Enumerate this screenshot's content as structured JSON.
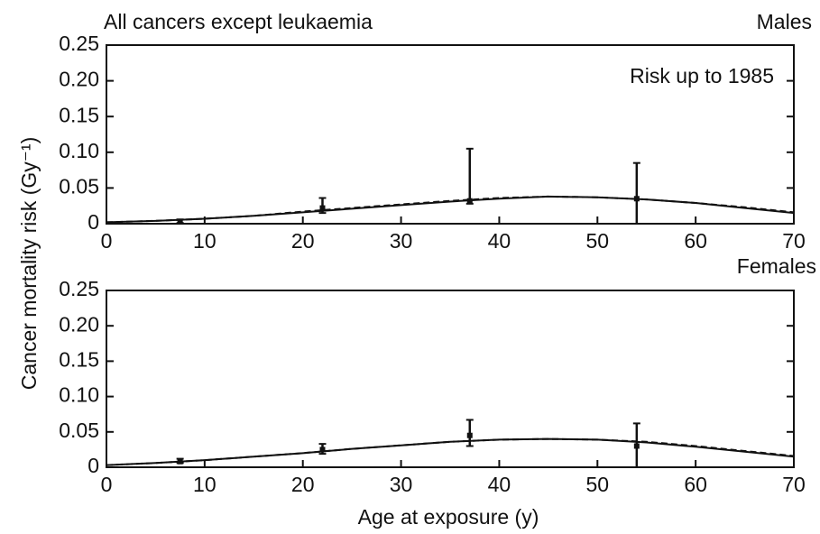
{
  "chart_data": [
    {
      "type": "line",
      "title": "All cancers except leukaemia",
      "subtitle": "Males",
      "annotation": "Risk up to 1985",
      "y_label": "Cancer mortality risk (Gy⁻¹)",
      "xlim": [
        0,
        70
      ],
      "xticks": [
        0,
        10,
        20,
        30,
        40,
        50,
        60,
        70
      ],
      "ylim": [
        0,
        0.25
      ],
      "yticks": [
        0,
        0.05,
        {
          "value": 0.1,
          "label": "0.10"
        },
        0.15,
        {
          "value": 0.2,
          "label": "0.20"
        },
        0.25
      ],
      "x": [
        0,
        5,
        10,
        15,
        20,
        25,
        30,
        35,
        40,
        45,
        50,
        55,
        60,
        65,
        70
      ],
      "series": [
        {
          "color": "#111111",
          "style": "solid",
          "values": [
            0.002,
            0.004,
            0.007,
            0.011,
            0.016,
            0.021,
            0.026,
            0.031,
            0.035,
            0.038,
            0.037,
            0.034,
            0.029,
            0.022,
            0.015
          ]
        },
        {
          "color": "#111111",
          "style": "dashed",
          "values": [
            0.002,
            0.004,
            0.007,
            0.011,
            0.017,
            0.022,
            0.027,
            0.032,
            0.036,
            0.038,
            0.037,
            0.034,
            0.029,
            0.023,
            0.016
          ]
        }
      ],
      "points": {
        "x": [
          7.5,
          22,
          37,
          54
        ],
        "y": [
          0.003,
          0.022,
          0.032,
          0.035
        ],
        "low": [
          0.001,
          0.015,
          0.028,
          0.0
        ],
        "high": [
          0.006,
          0.036,
          0.105,
          0.085
        ]
      }
    },
    {
      "type": "line",
      "subtitle": "Females",
      "x_label": "Age at exposure (y)",
      "xlim": [
        0,
        70
      ],
      "xticks": [
        0,
        10,
        20,
        30,
        40,
        50,
        60,
        70
      ],
      "ylim": [
        0,
        0.25
      ],
      "yticks": [
        0,
        0.05,
        {
          "value": 0.1,
          "label": "0.10"
        },
        0.15,
        {
          "value": 0.2,
          "label": "0.20"
        },
        0.25
      ],
      "x": [
        0,
        5,
        10,
        15,
        20,
        25,
        30,
        35,
        40,
        45,
        50,
        55,
        60,
        65,
        70
      ],
      "series": [
        {
          "color": "#111111",
          "style": "solid",
          "values": [
            0.003,
            0.006,
            0.01,
            0.015,
            0.02,
            0.026,
            0.031,
            0.036,
            0.039,
            0.04,
            0.039,
            0.035,
            0.029,
            0.022,
            0.015
          ]
        },
        {
          "color": "#111111",
          "style": "dashed",
          "values": [
            0.003,
            0.006,
            0.01,
            0.015,
            0.02,
            0.026,
            0.031,
            0.036,
            0.039,
            0.04,
            0.039,
            0.036,
            0.03,
            0.023,
            0.016
          ]
        }
      ],
      "points": {
        "x": [
          7.5,
          22,
          37,
          54
        ],
        "y": [
          0.008,
          0.025,
          0.045,
          0.03
        ],
        "low": [
          0.006,
          0.019,
          0.03,
          0.0
        ],
        "high": [
          0.012,
          0.033,
          0.067,
          0.062
        ]
      }
    }
  ]
}
